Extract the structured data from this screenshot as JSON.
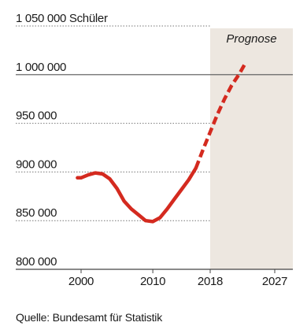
{
  "chart_data": {
    "type": "line",
    "ylabel": "Schüler",
    "ylim": [
      800000,
      1050000
    ],
    "y_ticks": [
      {
        "value": 800000,
        "label": "800 000"
      },
      {
        "value": 850000,
        "label": "850 000"
      },
      {
        "value": 900000,
        "label": "900 000"
      },
      {
        "value": 950000,
        "label": "950 000"
      },
      {
        "value": 1000000,
        "label": "1 000 000"
      },
      {
        "value": 1050000,
        "label": "1 050 000"
      }
    ],
    "x_ticks": [
      2000,
      2010,
      2018,
      2027
    ],
    "forecast_label": "Prognose",
    "forecast_start": 2018,
    "forecast_end": 2027,
    "source": "Quelle: Bundesamt für Statistik",
    "line_color": "#d42a1f",
    "forecast_band_color": "#ede7e0",
    "series": [
      {
        "values_historical": [
          [
            1999.5,
            894000
          ],
          [
            2000,
            894000
          ],
          [
            2001,
            897000
          ],
          [
            2002,
            899000
          ],
          [
            2003,
            898000
          ],
          [
            2004,
            893000
          ],
          [
            2005,
            883000
          ],
          [
            2006,
            870000
          ],
          [
            2007,
            862000
          ],
          [
            2008,
            856000
          ],
          [
            2009,
            850000
          ],
          [
            2010,
            849000
          ],
          [
            2011,
            853000
          ],
          [
            2012,
            862000
          ],
          [
            2013,
            872000
          ],
          [
            2014,
            882000
          ],
          [
            2015,
            892000
          ],
          [
            2016,
            904000
          ]
        ],
        "values_forecast": [
          [
            2016,
            904000
          ],
          [
            2017,
            923000
          ],
          [
            2018,
            941000
          ],
          [
            2019,
            959000
          ],
          [
            2020,
            975000
          ],
          [
            2021,
            989000
          ],
          [
            2022,
            1000000
          ],
          [
            2023,
            1013000
          ]
        ]
      }
    ]
  }
}
